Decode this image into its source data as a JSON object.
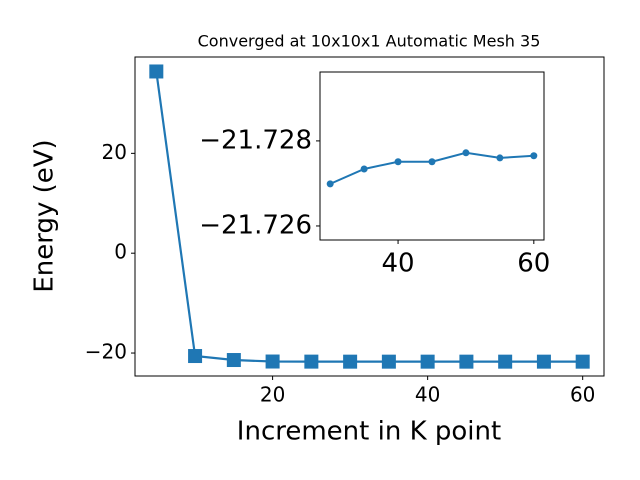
{
  "chart_data": [
    {
      "type": "line",
      "title": "Converged at 10x10x1 Automatic Mesh 35",
      "xlabel": "Increment in K point",
      "ylabel": "Energy (eV)",
      "x": [
        5,
        10,
        15,
        20,
        25,
        30,
        35,
        40,
        45,
        50,
        55,
        60
      ],
      "values": [
        36.4,
        -20.6,
        -21.4,
        -21.7,
        -21.72,
        -21.72699,
        -21.72734,
        -21.72751,
        -21.72751,
        -21.72772,
        -21.7276,
        -21.72765
      ],
      "color": "#1f77b4",
      "marker": "square",
      "xlim": [
        2.25,
        62.75
      ],
      "ylim": [
        -24.6,
        39.3
      ],
      "xticks": [
        20,
        40,
        60
      ],
      "yticks": [
        {
          "value": -20,
          "label": "−20"
        },
        0,
        20
      ]
    },
    {
      "type": "line",
      "x": [
        30,
        35,
        40,
        45,
        50,
        55,
        60
      ],
      "values": [
        -21.72699,
        -21.72734,
        -21.72751,
        -21.72751,
        -21.72772,
        -21.7276,
        -21.72765
      ],
      "color": "#1f77b4",
      "marker": "circle",
      "xlim": [
        28.5,
        61.5
      ],
      "ylim": [
        -21.72567,
        -21.72962
      ],
      "xticks": [
        40,
        60
      ],
      "yticks": [
        {
          "value": -21.726,
          "label": "−21.726"
        },
        {
          "value": -21.728,
          "label": "−21.728"
        }
      ]
    }
  ]
}
